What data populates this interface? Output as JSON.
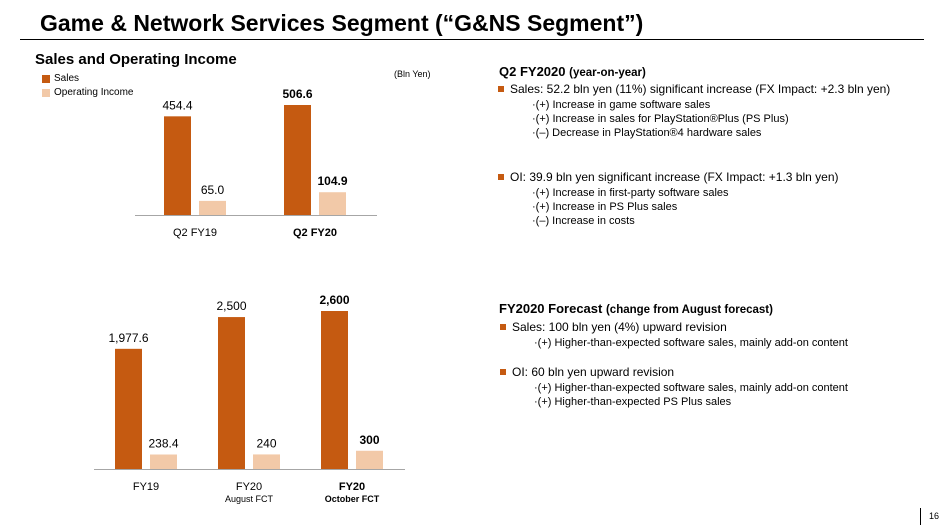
{
  "title": "Game & Network Services Segment (“G&NS Segment”)",
  "section_heading": "Sales and Operating Income",
  "legend": [
    {
      "label": "Sales",
      "color": "#c55a11"
    },
    {
      "label": "Operating Income",
      "color": "#f2c9a8"
    }
  ],
  "unit_note": "(Bln Yen)",
  "chart_data": [
    {
      "type": "bar",
      "categories": [
        "Q2 FY19",
        "Q2 FY20"
      ],
      "category_sublabels": [
        "",
        ""
      ],
      "category_bold": [
        false,
        true
      ],
      "series": [
        {
          "name": "Sales",
          "values": [
            454.4,
            506.6
          ],
          "labels": [
            "454.4",
            "506.6"
          ],
          "label_bold": [
            false,
            true
          ],
          "color": "#c55a11"
        },
        {
          "name": "Operating Income",
          "values": [
            65.0,
            104.9
          ],
          "labels": [
            "65.0",
            "104.9"
          ],
          "label_bold": [
            false,
            true
          ],
          "color": "#f2c9a8"
        }
      ]
    },
    {
      "type": "bar",
      "categories": [
        "FY19",
        "FY20",
        "FY20"
      ],
      "category_sublabels": [
        "",
        "August FCT",
        "October FCT"
      ],
      "category_bold": [
        false,
        false,
        true
      ],
      "series": [
        {
          "name": "Sales",
          "values": [
            1977.6,
            2500,
            2600
          ],
          "labels": [
            "1,977.6",
            "2,500",
            "2,600"
          ],
          "label_bold": [
            false,
            false,
            true
          ],
          "color": "#c55a11"
        },
        {
          "name": "Operating Income",
          "values": [
            238.4,
            240,
            300
          ],
          "labels": [
            "238.4",
            "240",
            "300"
          ],
          "label_bold": [
            false,
            false,
            true
          ],
          "color": "#f2c9a8"
        }
      ]
    }
  ],
  "q2": {
    "heading": "Q2 FY2020",
    "heading_sub": "(year-on-year)",
    "sales": {
      "text": "Sales: 52.2 bln yen (11%) significant increase (FX Impact: +2.3 bln yen)",
      "items": [
        "·(+) Increase in game software sales",
        "·(+) Increase in sales for PlayStation®Plus (PS Plus)",
        "·(–) Decrease in PlayStation®4 hardware sales"
      ]
    },
    "oi": {
      "text": "OI: 39.9 bln yen significant increase (FX Impact: +1.3 bln yen)",
      "items": [
        "·(+) Increase in first-party software sales",
        "·(+) Increase in PS Plus sales",
        "·(–) Increase in costs"
      ]
    }
  },
  "forecast": {
    "heading": "FY2020 Forecast",
    "heading_sub": "(change from August forecast)",
    "sales": {
      "text": "Sales: 100 bln yen (4%) upward revision",
      "items": [
        "·(+) Higher-than-expected software sales, mainly add-on content"
      ]
    },
    "oi": {
      "text": "OI: 60 bln yen upward revision",
      "items": [
        "·(+) Higher-than-expected software sales, mainly add-on content",
        "·(+) Higher-than-expected PS Plus sales"
      ]
    }
  },
  "page_number": "16"
}
